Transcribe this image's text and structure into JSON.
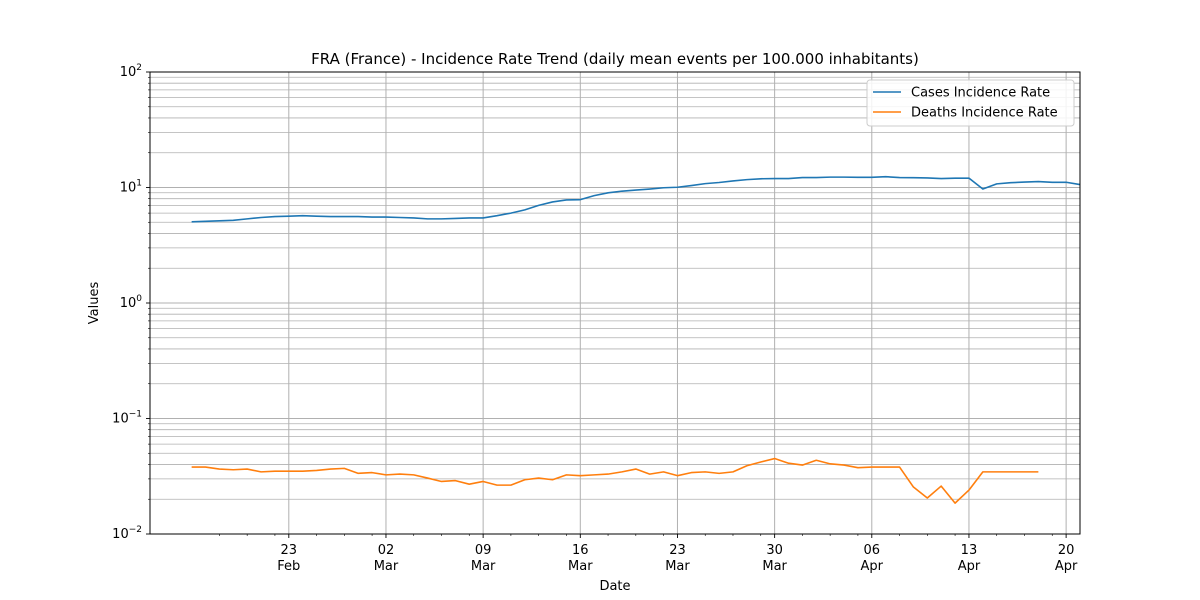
{
  "chart_data": {
    "type": "line",
    "title": "FRA (France) - Incidence Rate Trend (daily mean events per 100.000 inhabitants)",
    "xlabel": "Date",
    "ylabel": "Values",
    "yscale": "log",
    "ylim": [
      0.01,
      100
    ],
    "xlim": [
      "2021-02-13",
      "2021-04-21"
    ],
    "grid": true,
    "legend_position": "top-right",
    "y_ticks": [
      {
        "value": 0.01,
        "base": "10",
        "exp": "−2"
      },
      {
        "value": 0.1,
        "base": "10",
        "exp": "−1"
      },
      {
        "value": 1,
        "base": "10",
        "exp": "0"
      },
      {
        "value": 10,
        "base": "10",
        "exp": "1"
      },
      {
        "value": 100,
        "base": "10",
        "exp": "2"
      }
    ],
    "x_ticks": [
      {
        "date": "2021-02-23",
        "day": "23",
        "month": "Feb"
      },
      {
        "date": "2021-03-02",
        "day": "02",
        "month": "Mar"
      },
      {
        "date": "2021-03-09",
        "day": "09",
        "month": "Mar"
      },
      {
        "date": "2021-03-16",
        "day": "16",
        "month": "Mar"
      },
      {
        "date": "2021-03-23",
        "day": "23",
        "month": "Mar"
      },
      {
        "date": "2021-03-30",
        "day": "30",
        "month": "Mar"
      },
      {
        "date": "2021-04-06",
        "day": "06",
        "month": "Apr"
      },
      {
        "date": "2021-04-13",
        "day": "13",
        "month": "Apr"
      },
      {
        "date": "2021-04-20",
        "day": "20",
        "month": "Apr"
      }
    ],
    "x_start": "2021-02-16",
    "x_step_days": 1,
    "series": [
      {
        "name": "Cases Incidence Rate",
        "color": "#1f77b4",
        "values": [
          5.05,
          5.1,
          5.15,
          5.2,
          5.35,
          5.5,
          5.6,
          5.65,
          5.7,
          5.65,
          5.6,
          5.6,
          5.6,
          5.55,
          5.55,
          5.5,
          5.45,
          5.35,
          5.35,
          5.4,
          5.45,
          5.45,
          5.7,
          6.0,
          6.4,
          7.0,
          7.5,
          7.8,
          7.85,
          8.5,
          9.0,
          9.3,
          9.5,
          9.7,
          9.95,
          10.05,
          10.4,
          10.8,
          11.05,
          11.4,
          11.7,
          11.9,
          11.95,
          11.95,
          12.2,
          12.2,
          12.3,
          12.3,
          12.25,
          12.25,
          12.4,
          12.2,
          12.15,
          12.1,
          11.95,
          12.05,
          12.05,
          9.7,
          10.75,
          11.0,
          11.15,
          11.25,
          11.1,
          11.1,
          10.6
        ]
      },
      {
        "name": "Deaths Incidence Rate",
        "color": "#ff7f0e",
        "values": [
          0.038,
          0.038,
          0.0365,
          0.036,
          0.0365,
          0.0345,
          0.035,
          0.035,
          0.035,
          0.0355,
          0.0365,
          0.037,
          0.0335,
          0.034,
          0.0325,
          0.033,
          0.0325,
          0.0305,
          0.0285,
          0.029,
          0.027,
          0.0285,
          0.0265,
          0.0265,
          0.0295,
          0.0305,
          0.0295,
          0.0325,
          0.032,
          0.0325,
          0.033,
          0.0345,
          0.0365,
          0.033,
          0.0345,
          0.032,
          0.034,
          0.0345,
          0.0335,
          0.0345,
          0.039,
          0.042,
          0.045,
          0.041,
          0.0395,
          0.0435,
          0.0405,
          0.0395,
          0.0375,
          0.038,
          0.038,
          0.038,
          0.0255,
          0.0205,
          0.026,
          0.0185,
          0.024,
          0.0345,
          0.0345,
          0.0345,
          0.0345,
          0.0345
        ]
      }
    ]
  }
}
